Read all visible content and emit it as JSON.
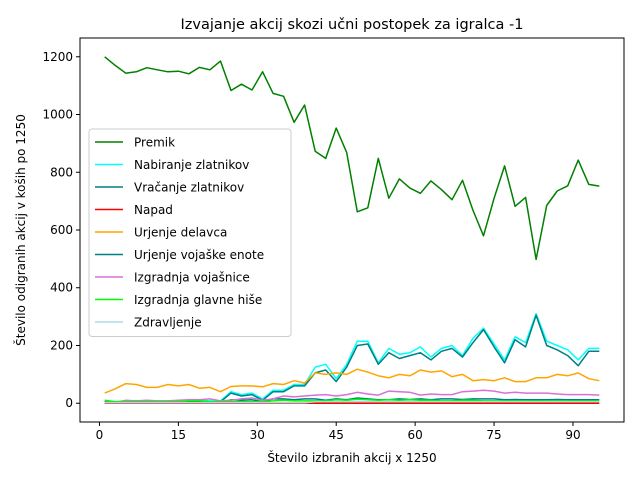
{
  "chart_data": {
    "type": "line",
    "title": "Izvajanje akcij skozi učni postopek za igralca -1",
    "xlabel": "Število izbranih akcij x 1250",
    "ylabel": "Število odigranih akcij v koših po 1250",
    "xlim": [
      -3.7,
      99.7
    ],
    "ylim": [
      -65,
      1265
    ],
    "xticks": [
      0,
      15,
      30,
      45,
      60,
      75,
      90
    ],
    "yticks": [
      0,
      200,
      400,
      600,
      800,
      1000,
      1200
    ],
    "grid": false,
    "legend_position": "center-left",
    "x": [
      1,
      3,
      5,
      7,
      9,
      11,
      13,
      15,
      17,
      19,
      21,
      23,
      25,
      27,
      29,
      31,
      33,
      35,
      37,
      39,
      41,
      43,
      45,
      47,
      49,
      51,
      53,
      55,
      57,
      59,
      61,
      63,
      65,
      67,
      69,
      71,
      73,
      75,
      77,
      79,
      81,
      83,
      85,
      87,
      89,
      91,
      93,
      95
    ],
    "series": [
      {
        "name": "Premik",
        "color": "#008000",
        "values": [
          1200,
          1170,
          1143,
          1148,
          1162,
          1155,
          1148,
          1150,
          1141,
          1163,
          1155,
          1185,
          1083,
          1105,
          1085,
          1148,
          1073,
          1063,
          973,
          1033,
          873,
          848,
          953,
          868,
          663,
          677,
          848,
          710,
          777,
          745,
          727,
          770,
          740,
          705,
          772,
          668,
          580,
          710,
          822,
          682,
          713,
          498,
          685,
          735,
          753,
          842,
          758,
          752
        ]
      },
      {
        "name": "Nabiranje zlatnikov",
        "color": "#00ffff",
        "values": [
          8,
          5,
          8,
          9,
          7,
          8,
          8,
          8,
          8,
          10,
          8,
          8,
          40,
          30,
          35,
          15,
          45,
          45,
          65,
          65,
          125,
          135,
          85,
          135,
          215,
          215,
          140,
          190,
          170,
          175,
          195,
          160,
          190,
          200,
          165,
          225,
          260,
          205,
          150,
          230,
          210,
          310,
          215,
          200,
          185,
          150,
          190,
          190
        ]
      },
      {
        "name": "Vračanje zlatnikov",
        "color": "#008080",
        "values": [
          5,
          3,
          5,
          5,
          4,
          5,
          5,
          5,
          5,
          6,
          5,
          5,
          35,
          25,
          30,
          10,
          40,
          40,
          60,
          60,
          105,
          115,
          75,
          125,
          200,
          205,
          135,
          175,
          155,
          165,
          175,
          150,
          180,
          190,
          160,
          210,
          255,
          195,
          140,
          220,
          195,
          305,
          200,
          185,
          165,
          130,
          180,
          180
        ]
      },
      {
        "name": "Napad",
        "color": "#ff0000",
        "values": [
          0,
          0,
          0,
          0,
          0,
          0,
          0,
          0,
          0,
          0,
          0,
          0,
          0,
          0,
          0,
          0,
          0,
          0,
          0,
          0,
          0,
          0,
          0,
          0,
          0,
          0,
          0,
          0,
          0,
          0,
          0,
          0,
          0,
          0,
          0,
          0,
          0,
          0,
          0,
          0,
          0,
          0,
          0,
          0,
          0,
          0,
          0,
          0
        ]
      },
      {
        "name": "Urjenje delavca",
        "color": "#ffa500",
        "values": [
          35,
          50,
          68,
          65,
          55,
          55,
          65,
          60,
          65,
          52,
          55,
          40,
          58,
          60,
          60,
          57,
          68,
          65,
          78,
          70,
          105,
          100,
          105,
          100,
          118,
          108,
          95,
          88,
          100,
          95,
          115,
          108,
          112,
          92,
          100,
          78,
          82,
          78,
          88,
          75,
          75,
          88,
          88,
          100,
          95,
          105,
          85,
          78
        ]
      },
      {
        "name": "Urjenje vojaške enote",
        "color": "#008080",
        "values": [
          2,
          2,
          2,
          3,
          2,
          3,
          3,
          2,
          3,
          3,
          3,
          3,
          12,
          10,
          12,
          5,
          15,
          15,
          12,
          15,
          15,
          10,
          15,
          12,
          18,
          15,
          12,
          12,
          15,
          13,
          15,
          12,
          15,
          15,
          13,
          15,
          15,
          15,
          12,
          13,
          12,
          12,
          12,
          13,
          12,
          12,
          12,
          12
        ]
      },
      {
        "name": "Izgradnja vojašnice",
        "color": "#da70d6",
        "values": [
          3,
          3,
          10,
          8,
          10,
          8,
          8,
          10,
          12,
          12,
          15,
          8,
          10,
          15,
          18,
          10,
          15,
          25,
          22,
          25,
          28,
          30,
          25,
          30,
          38,
          32,
          28,
          42,
          40,
          38,
          28,
          32,
          30,
          30,
          40,
          42,
          45,
          42,
          35,
          38,
          35,
          35,
          35,
          32,
          30,
          30,
          30,
          28
        ]
      },
      {
        "name": "Izgradnja glavne hiše",
        "color": "#00ff00",
        "values": [
          10,
          5,
          5,
          5,
          5,
          5,
          5,
          5,
          8,
          8,
          5,
          5,
          5,
          5,
          5,
          5,
          8,
          10,
          8,
          8,
          8,
          8,
          12,
          10,
          14,
          12,
          10,
          12,
          10,
          12,
          10,
          10,
          8,
          8,
          10,
          10,
          8,
          8,
          8,
          8,
          8,
          8,
          8,
          8,
          8,
          8,
          8,
          8
        ]
      },
      {
        "name": "Zdravljenje",
        "color": "#add8e6",
        "values": [
          2,
          2,
          2,
          2,
          2,
          2,
          2,
          2,
          2,
          2,
          2,
          2,
          2,
          2,
          2,
          2,
          2,
          2,
          2,
          2,
          5,
          5,
          5,
          5,
          5,
          5,
          5,
          5,
          5,
          5,
          5,
          5,
          5,
          5,
          5,
          5,
          5,
          5,
          5,
          5,
          5,
          5,
          5,
          5,
          5,
          5,
          5,
          5
        ]
      }
    ]
  }
}
